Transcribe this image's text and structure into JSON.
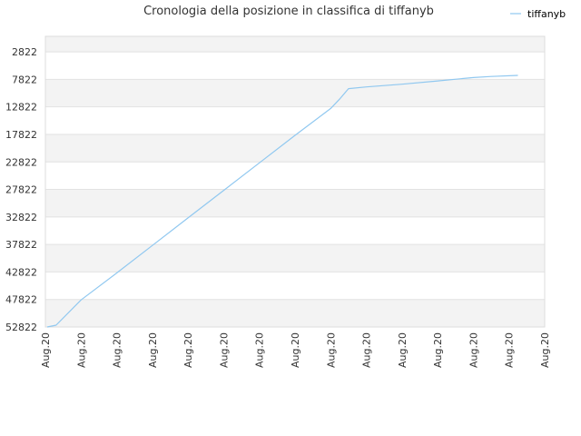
{
  "chart_data": {
    "type": "line",
    "title": "Cronologia della posizione in classifica di tiffanyb",
    "xlabel": "",
    "ylabel": "",
    "legend_position": "top-right",
    "grid": true,
    "y_inverted": true,
    "ylim": [
      52822,
      0
    ],
    "y_ticks": [
      2822,
      7822,
      12822,
      17822,
      22822,
      27822,
      32822,
      37822,
      42822,
      47822,
      52822
    ],
    "x_tick_labels": [
      "Aug.20",
      "Aug.20",
      "Aug.20",
      "Aug.20",
      "Aug.20",
      "Aug.20",
      "Aug.20",
      "Aug.20",
      "Aug.20",
      "Aug.20",
      "Aug.20",
      "Aug.20",
      "Aug.20",
      "Aug.20",
      "Aug.20"
    ],
    "series": [
      {
        "name": "tiffanyb",
        "color": "#90c8f0",
        "x": [
          0.05,
          0.3,
          1,
          2,
          3,
          4,
          5,
          6,
          7,
          8,
          8.25,
          8.5,
          9,
          10,
          11,
          12,
          12.5,
          13.25
        ],
        "y": [
          52822,
          52500,
          47900,
          43000,
          38000,
          33000,
          28000,
          23000,
          18000,
          13100,
          11400,
          9500,
          9200,
          8700,
          8100,
          7500,
          7300,
          7100
        ]
      }
    ]
  }
}
